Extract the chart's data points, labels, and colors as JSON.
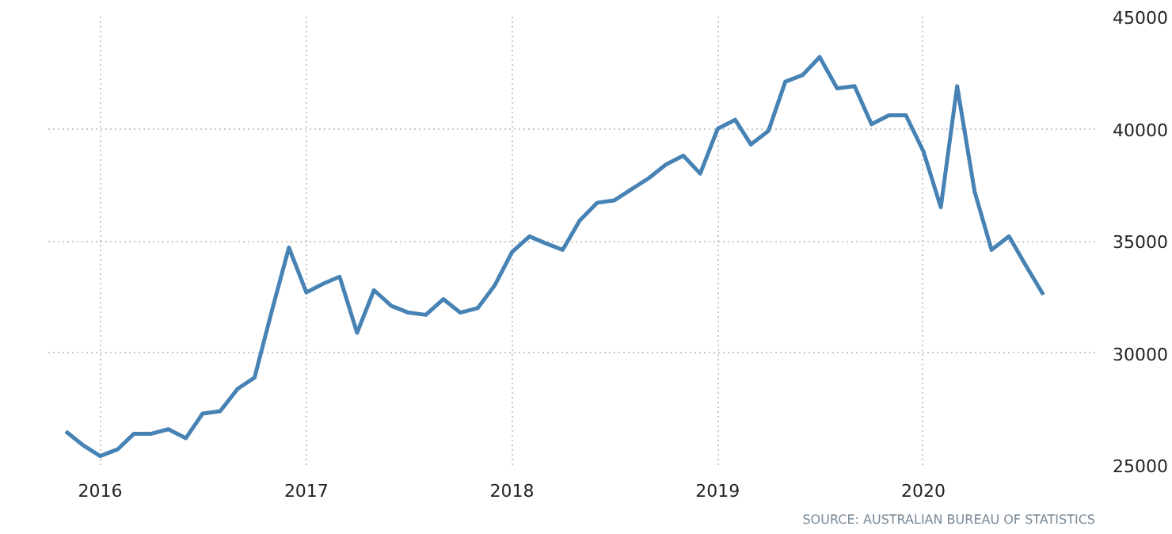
{
  "chart_data": {
    "type": "line",
    "x": [
      "2015-11",
      "2015-12",
      "2016-01",
      "2016-02",
      "2016-03",
      "2016-04",
      "2016-05",
      "2016-06",
      "2016-07",
      "2016-08",
      "2016-09",
      "2016-10",
      "2016-11",
      "2016-12",
      "2017-01",
      "2017-02",
      "2017-03",
      "2017-04",
      "2017-05",
      "2017-06",
      "2017-07",
      "2017-08",
      "2017-09",
      "2017-10",
      "2017-11",
      "2017-12",
      "2018-01",
      "2018-02",
      "2018-03",
      "2018-04",
      "2018-05",
      "2018-06",
      "2018-07",
      "2018-08",
      "2018-09",
      "2018-10",
      "2018-11",
      "2018-12",
      "2019-01",
      "2019-02",
      "2019-03",
      "2019-04",
      "2019-05",
      "2019-06",
      "2019-07",
      "2019-08",
      "2019-09",
      "2019-10",
      "2019-11",
      "2019-12",
      "2020-01",
      "2020-02",
      "2020-03",
      "2020-04",
      "2020-05",
      "2020-06",
      "2020-07",
      "2020-08"
    ],
    "series": [
      {
        "color": "#4682b4",
        "values": [
          26500,
          25900,
          25400,
          25700,
          26400,
          26400,
          26600,
          26200,
          27300,
          27400,
          28400,
          28900,
          31900,
          34700,
          32700,
          33100,
          33400,
          30900,
          32800,
          32100,
          31800,
          31700,
          32400,
          31800,
          32000,
          33000,
          34500,
          35200,
          34900,
          34600,
          35900,
          36700,
          36800,
          37300,
          37800,
          38400,
          38800,
          38000,
          40000,
          40400,
          39300,
          39900,
          42100,
          42400,
          43200,
          41800,
          41900,
          40200,
          40600,
          40600,
          39000,
          36500,
          41900,
          37200,
          34600,
          35200,
          33900,
          32600
        ]
      }
    ],
    "xlim": [
      "2015-10",
      "2020-11"
    ],
    "xticks": [
      "2016",
      "2017",
      "2018",
      "2019",
      "2020"
    ],
    "ylim": [
      25000,
      45000
    ],
    "yticks": [
      25000,
      30000,
      35000,
      40000,
      45000
    ],
    "grid": true,
    "line_style": "solid",
    "annotations": [
      "SOURCE: AUSTRALIAN BUREAU OF STATISTICS"
    ]
  }
}
